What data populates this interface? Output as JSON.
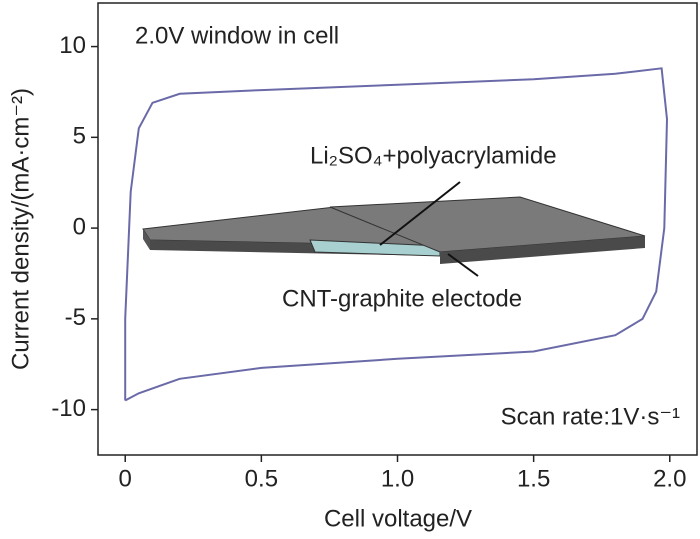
{
  "chart_data": {
    "type": "line",
    "title": "2.0V window in cell",
    "x_label": "Cell voltage/V",
    "y_label": "Current density/(mA·cm⁻²)",
    "annotations": [
      "Li₂SO₄+polyacrylamide",
      "CNT-graphite electode",
      "Scan rate:1V·s⁻¹"
    ],
    "x": [
      0,
      0.0,
      0.02,
      0.05,
      0.1,
      0.2,
      0.5,
      1.0,
      1.5,
      1.8,
      1.97,
      1.99,
      1.98,
      1.95,
      1.9,
      1.8,
      1.5,
      1.0,
      0.5,
      0.2,
      0.05,
      0
    ],
    "series": [
      {
        "color": "#6a6aa8",
        "values": [
          -9.5,
          -5,
          2,
          5.5,
          6.9,
          7.4,
          7.6,
          7.9,
          8.2,
          8.5,
          8.8,
          6,
          0,
          -3.5,
          -5,
          -5.9,
          -6.8,
          -7.2,
          -7.7,
          -8.3,
          -9.1,
          -9.5
        ]
      }
    ],
    "xlim": [
      -0.1,
      2.1
    ],
    "ylim": [
      -12.5,
      12.4
    ],
    "xticks": [
      0,
      0.5,
      {
        "value": 1,
        "label": "1.0"
      },
      1.5,
      {
        "value": 2,
        "label": "2.0"
      }
    ],
    "yticks": [
      10,
      5,
      0,
      -5,
      -10
    ]
  }
}
